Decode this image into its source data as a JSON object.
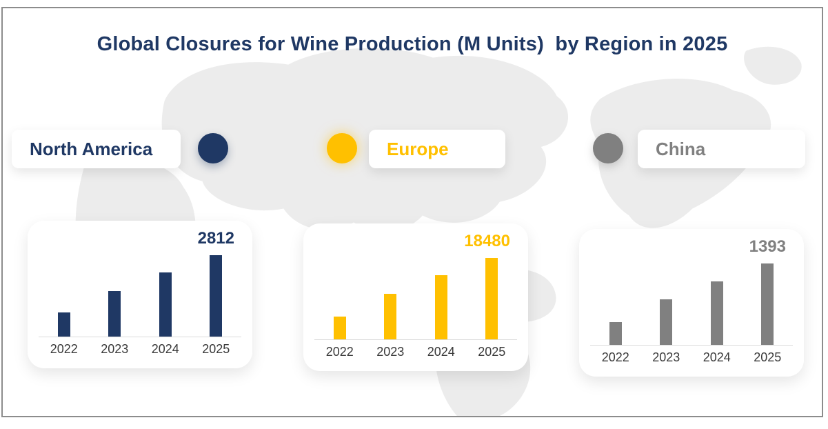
{
  "title": {
    "text": "Global Closures for Wine Production (M Units)  by Region in 2025"
  },
  "colors": {
    "navy": "#1f3864",
    "gold": "#ffc000",
    "gray": "#808080",
    "frame_border": "#8c8c8c",
    "axis_line": "#dcdcdc",
    "year_label": "#3a3a3a",
    "map_fill": "#ececec",
    "card_bg": "#ffffff"
  },
  "legend": {
    "items": [
      {
        "label": "North America",
        "color": "#1f3864",
        "marker": "circle",
        "marker_position": "right"
      },
      {
        "label": "Europe",
        "color": "#ffc000",
        "marker": "circle",
        "marker_position": "left"
      },
      {
        "label": "China",
        "color": "#808080",
        "marker": "circle",
        "marker_position": "left"
      }
    ]
  },
  "chart_data": [
    {
      "type": "bar",
      "title": "North America",
      "categories": [
        "2022",
        "2023",
        "2024",
        "2025"
      ],
      "values": [
        834,
        1573,
        2216,
        2812
      ],
      "value_label": "2812",
      "color": "#1f3864",
      "ylim": [
        0,
        2812
      ],
      "grid": false,
      "legend_position": "none"
    },
    {
      "type": "bar",
      "title": "Europe",
      "categories": [
        "2022",
        "2023",
        "2024",
        "2025"
      ],
      "values": [
        5200,
        10400,
        14550,
        18480
      ],
      "value_label": "18480",
      "color": "#ffc000",
      "ylim": [
        0,
        18480
      ],
      "grid": false,
      "legend_position": "none"
    },
    {
      "type": "bar",
      "title": "China",
      "categories": [
        "2022",
        "2023",
        "2024",
        "2025"
      ],
      "values": [
        392,
        774,
        1083,
        1393
      ],
      "value_label": "1393",
      "color": "#808080",
      "ylim": [
        0,
        1393
      ],
      "grid": false,
      "legend_position": "none"
    }
  ]
}
